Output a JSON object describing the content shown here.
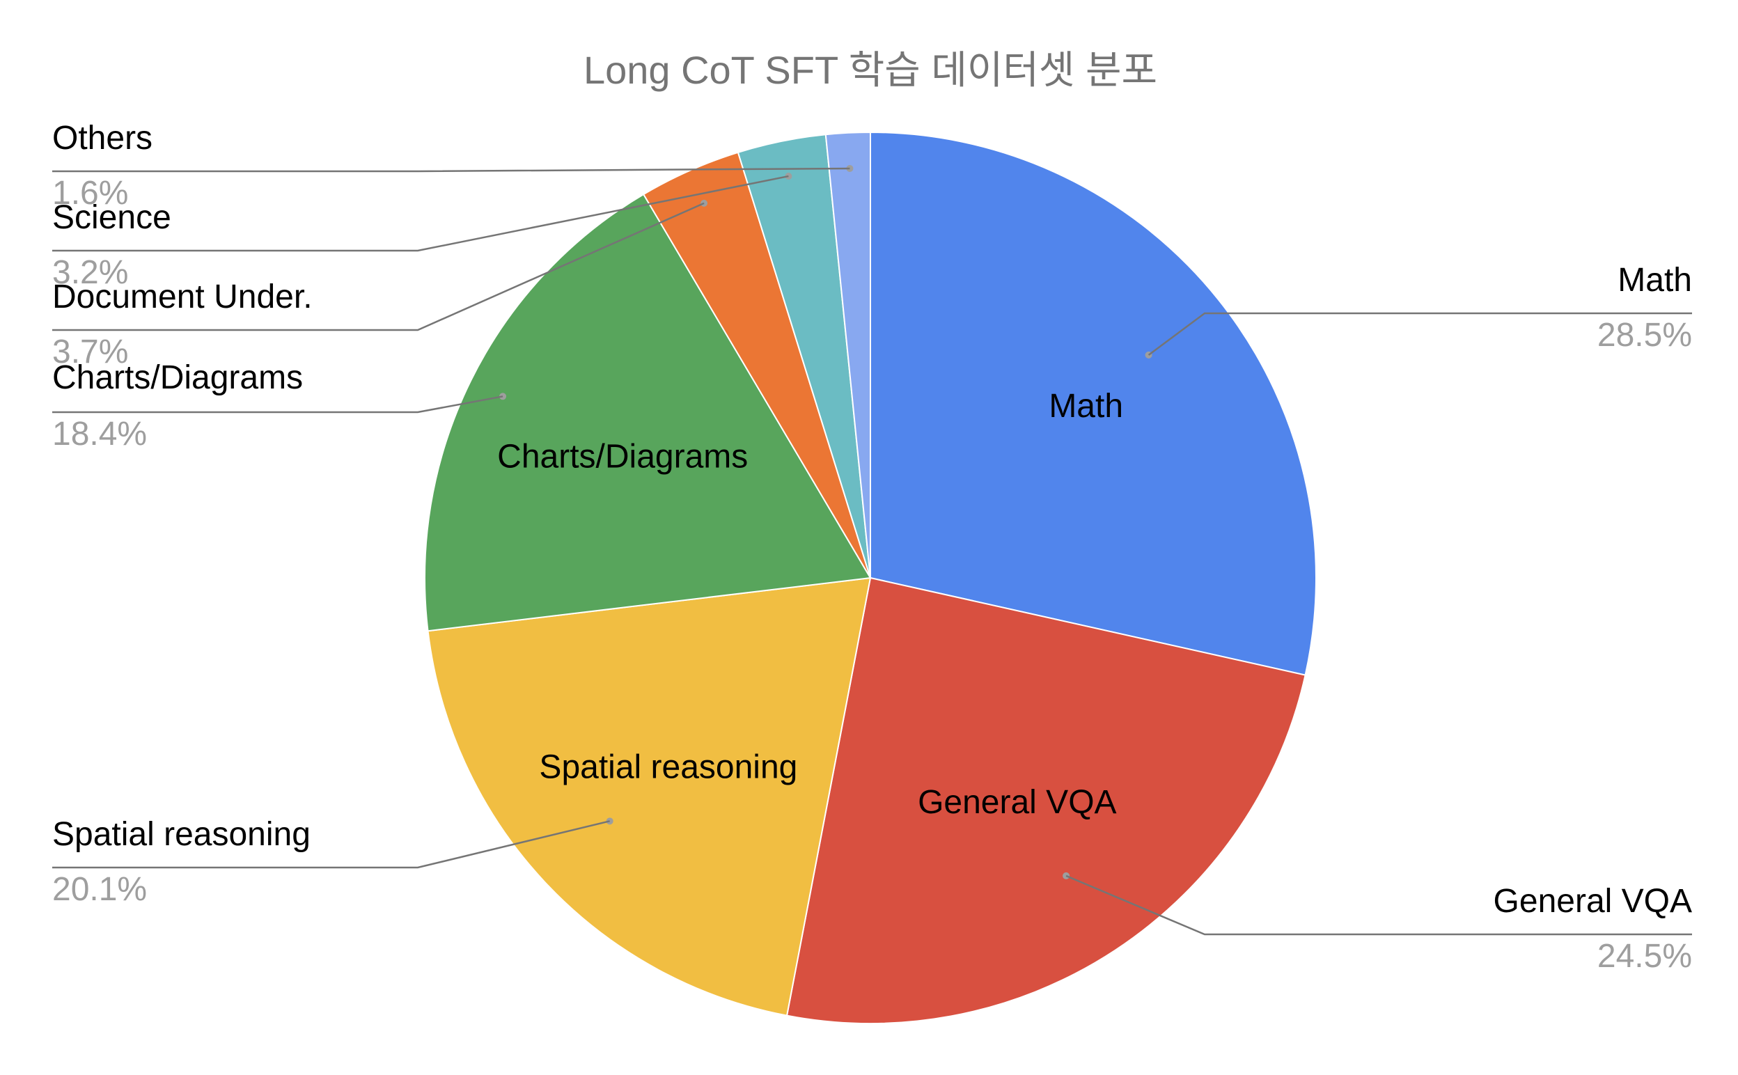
{
  "chart_data": {
    "type": "pie",
    "title": "Long CoT SFT 학습 데이터셋 분포",
    "slices": [
      {
        "name": "Math",
        "value": 28.5,
        "percent_label": "28.5%",
        "color": "#5185EC"
      },
      {
        "name": "General VQA",
        "value": 24.5,
        "percent_label": "24.5%",
        "color": "#D85040"
      },
      {
        "name": "Spatial reasoning",
        "value": 20.1,
        "percent_label": "20.1%",
        "color": "#F1BE42"
      },
      {
        "name": "Charts/Diagrams",
        "value": 18.4,
        "percent_label": "18.4%",
        "color": "#58A55C"
      },
      {
        "name": "Document Under.",
        "value": 3.7,
        "percent_label": "3.7%",
        "color": "#EB7634"
      },
      {
        "name": "Science",
        "value": 3.2,
        "percent_label": "3.2%",
        "color": "#6BBCC3"
      },
      {
        "name": "Others",
        "value": 1.6,
        "percent_label": "1.6%",
        "color": "#88A8F0"
      }
    ],
    "inside_labels": [
      "Math",
      "General VQA",
      "Spatial reasoning",
      "Charts/Diagrams"
    ],
    "start_angle": "12 o'clock",
    "direction": "clockwise",
    "legend": "none (external callout labels)"
  }
}
